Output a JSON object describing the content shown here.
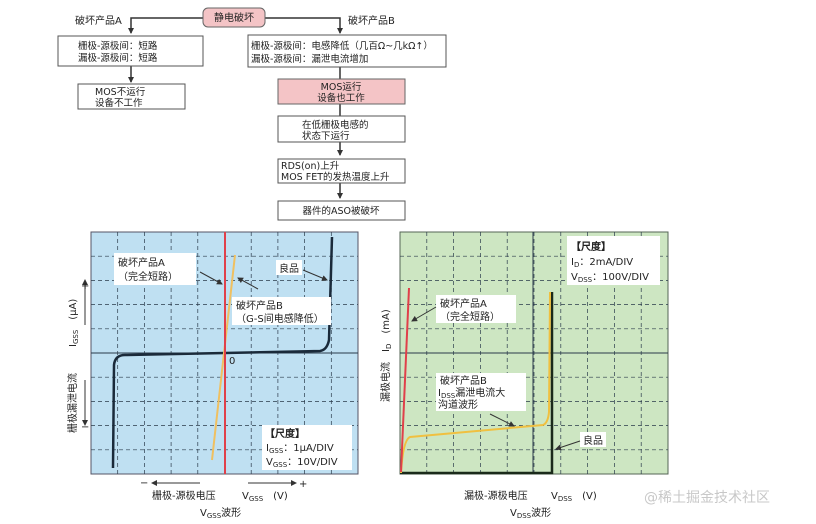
{
  "flowchart": {
    "root": "静电破坏",
    "branch_a_label": "破坏产品A",
    "branch_b_label": "破坏产品B",
    "a_box1": [
      "栅极-源极间：短路",
      "漏极-源极间：短路"
    ],
    "a_box2": [
      "MOS不运行",
      "设备不工作"
    ],
    "b_box1": [
      "栅极-源极间：电感降低（几百Ω~几kΩ↑）",
      "漏极-源极间：漏泄电流增加"
    ],
    "b_box2": [
      "MOS运行",
      "设备也工作"
    ],
    "b_box3": [
      "在低栅极电感的",
      "状态下运行"
    ],
    "b_box4": [
      "RDS(on)上升",
      "MOS FET的发热温度上升"
    ],
    "b_box5": "器件的ASO被破坏",
    "colors": {
      "highlight": "#f4c4c6"
    }
  },
  "vgss_panel": {
    "bg_color": "#bfe0f2",
    "ylabel_cn": "栅极漏泄电流",
    "ylabel_sym": "I",
    "ylabel_sub": "GSS",
    "ylabel_unit": "(μA)",
    "y_plus": "+",
    "y_minus": "−",
    "origin": "0",
    "annot_a": [
      "破坏产品A",
      "（完全短路）"
    ],
    "annot_b": [
      "破坏产品B",
      "（G-S间电感降低）"
    ],
    "annot_good": "良品",
    "scale_title": "【尺度】",
    "scale_i_sym": "I",
    "scale_i_sub": "GSS",
    "scale_i_val": "：1μA/DIV",
    "scale_v_sym": "V",
    "scale_v_sub": "GSS",
    "scale_v_val": "：10V/DIV",
    "x_minus": "−",
    "x_plus": "+",
    "xlabel_cn": "栅极-源极电压",
    "xlabel_sym": "V",
    "xlabel_sub": "GSS",
    "xlabel_unit": "(V)",
    "caption_sym": "V",
    "caption_sub": "GSS",
    "caption_text": "波形",
    "colors": {
      "good": "#1a2a3a",
      "product_a": "#e0404a",
      "product_b": "#f0c060"
    }
  },
  "vdss_panel": {
    "bg_color": "#cde6c2",
    "ylabel_cn": "漏极电流",
    "ylabel_sym": "I",
    "ylabel_sub": "D",
    "ylabel_unit": "(mA)",
    "annot_a": [
      "破坏产品A",
      "（完全短路）"
    ],
    "annot_b_title": "破坏产品B",
    "annot_b_sym": "I",
    "annot_b_sub": "DSS",
    "annot_b_text": "漏泄电流大",
    "annot_b_line3": "沟道波形",
    "annot_good": "良品",
    "scale_title": "【尺度】",
    "scale_i_sym": "I",
    "scale_i_sub": "D",
    "scale_i_val": "：2mA/DIV",
    "scale_v_sym": "V",
    "scale_v_sub": "DSS",
    "scale_v_val": "：100V/DIV",
    "xlabel_cn": "漏极-源极电压",
    "xlabel_sym": "V",
    "xlabel_sub": "DSS",
    "xlabel_unit": "(V)",
    "caption_sym": "V",
    "caption_sub": "DSS",
    "caption_text": "波形",
    "colors": {
      "good": "#1a2a1a",
      "product_a": "#e0404a",
      "product_b": "#f0c040"
    }
  },
  "watermark": "@稀土掘金技术社区"
}
